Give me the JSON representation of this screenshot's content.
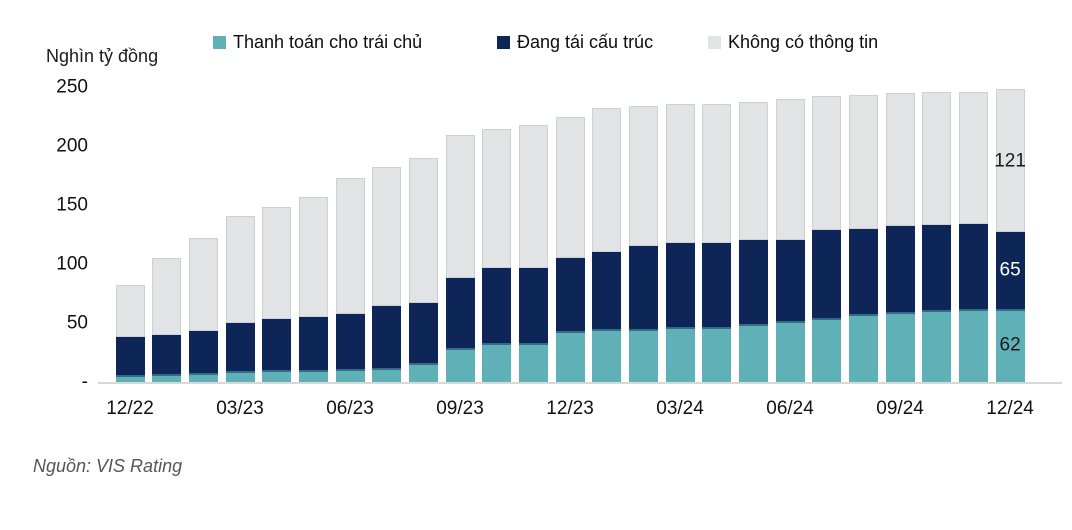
{
  "chart_data": {
    "type": "bar",
    "stacked": true,
    "unit_label": "Nghìn tỷ đồng",
    "source": "Nguồn: VIS Rating",
    "categories": [
      "12/22",
      "01/23",
      "02/23",
      "03/23",
      "04/23",
      "05/23",
      "06/23",
      "07/23",
      "08/23",
      "09/23",
      "10/23",
      "11/23",
      "12/23",
      "01/24",
      "02/24",
      "03/24",
      "04/24",
      "05/24",
      "06/24",
      "07/24",
      "08/24",
      "09/24",
      "10/24",
      "11/24",
      "12/24"
    ],
    "x_axis_tick_labels": [
      "12/22",
      "03/23",
      "06/23",
      "09/23",
      "12/23",
      "03/24",
      "06/24",
      "09/24",
      "12/24"
    ],
    "series": [
      {
        "name": "Thanh toán cho trái chủ",
        "color": "#5fb0b7",
        "values": [
          6,
          7,
          8,
          9,
          10,
          10,
          11,
          12,
          16,
          29,
          33,
          33,
          43,
          45,
          45,
          47,
          47,
          49,
          52,
          54,
          58,
          59,
          61,
          62,
          62
        ]
      },
      {
        "name": "Đang tái cấu trúc",
        "color": "#0e2657",
        "values": [
          32,
          33,
          35,
          41,
          43,
          45,
          47,
          52,
          51,
          59,
          64,
          64,
          62,
          65,
          70,
          71,
          71,
          71,
          68,
          75,
          72,
          73,
          72,
          72,
          65
        ]
      },
      {
        "name": "Không có thông tin",
        "color": "#e2e3e5",
        "values": [
          44,
          65,
          79,
          91,
          95,
          102,
          115,
          118,
          123,
          121,
          117,
          121,
          120,
          122,
          119,
          118,
          118,
          117,
          120,
          113,
          113,
          113,
          113,
          112,
          121
        ]
      }
    ],
    "ylim": [
      0,
      250
    ],
    "y_ticks": [
      {
        "label": "250",
        "value": 250
      },
      {
        "label": "200",
        "value": 200
      },
      {
        "label": "150",
        "value": 150
      },
      {
        "label": "100",
        "value": 100
      },
      {
        "label": "50",
        "value": 50
      },
      {
        "label": "-",
        "value": 0
      }
    ],
    "last_bar_value_labels": [
      {
        "segment_index": 0,
        "text": "62",
        "text_color": "#1a1a1a"
      },
      {
        "segment_index": 1,
        "text": "65",
        "text_color": "#ffffff"
      },
      {
        "segment_index": 2,
        "text": "121",
        "text_color": "#1a1a1a"
      }
    ],
    "legend_position": "top",
    "grid": false
  }
}
